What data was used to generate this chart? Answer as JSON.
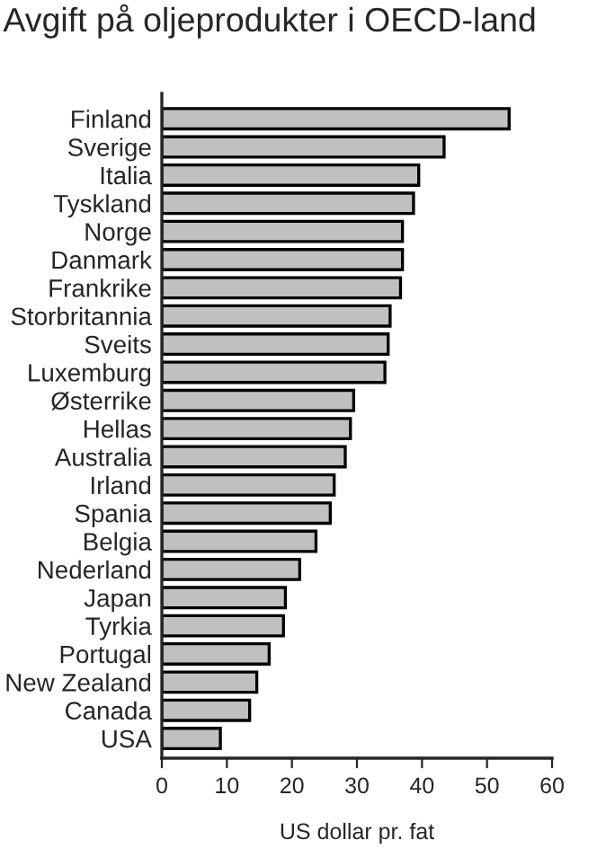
{
  "chart_data": {
    "type": "bar",
    "orientation": "horizontal",
    "title": "Avgift på oljeprodukter i OECD-land",
    "xlabel": "US dollar pr. fat",
    "categories": [
      "Finland",
      "Sverige",
      "Italia",
      "Tyskland",
      "Norge",
      "Danmark",
      "Frankrike",
      "Storbritannia",
      "Sveits",
      "Luxemburg",
      "Østerrike",
      "Hellas",
      "Australia",
      "Irland",
      "Spania",
      "Belgia",
      "Nederland",
      "Japan",
      "Tyrkia",
      "Portugal",
      "New Zealand",
      "Canada",
      "USA"
    ],
    "values": [
      53.4,
      43.4,
      39.5,
      38.7,
      37.0,
      37.0,
      36.7,
      35.1,
      34.8,
      34.3,
      29.5,
      29.0,
      28.2,
      26.5,
      25.9,
      23.7,
      21.2,
      19.0,
      18.7,
      16.5,
      14.6,
      13.5,
      9.0
    ],
    "color": "#c0c0c0",
    "xlim": [
      0,
      60
    ],
    "xticks": [
      0,
      10,
      20,
      30,
      40,
      50,
      60
    ],
    "grid": false
  }
}
